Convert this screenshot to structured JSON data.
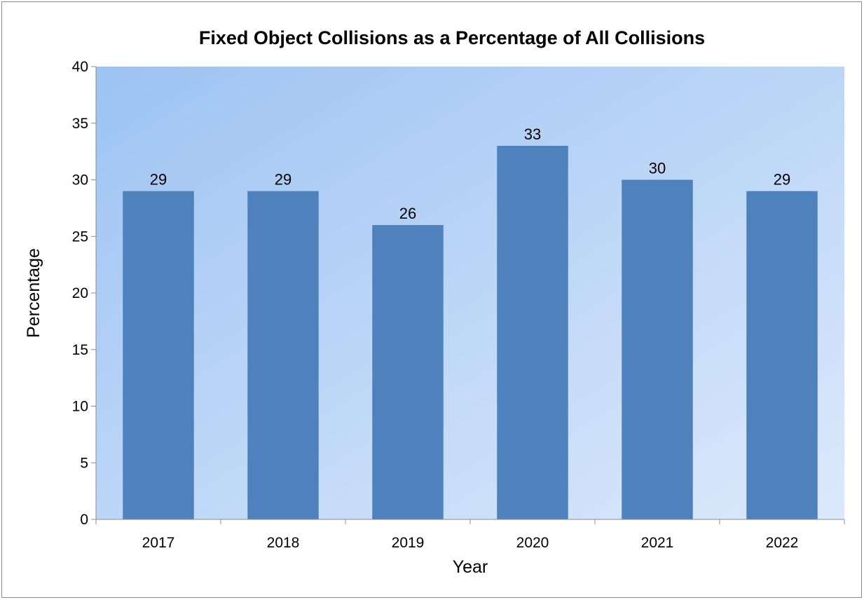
{
  "chart_data": {
    "type": "bar",
    "title": "Fixed Object Collisions as a Percentage of All Collisions",
    "xlabel": "Year",
    "ylabel": "Percentage",
    "categories": [
      "2017",
      "2018",
      "2019",
      "2020",
      "2021",
      "2022"
    ],
    "values": [
      29,
      29,
      26,
      33,
      30,
      29
    ],
    "data_labels": [
      "29",
      "29",
      "26",
      "33",
      "30",
      "29"
    ],
    "ylim": [
      0,
      40
    ],
    "yticks": [
      "0",
      "5",
      "10",
      "15",
      "20",
      "25",
      "30",
      "35",
      "40"
    ],
    "grid": false,
    "legend": "none",
    "colors": {
      "bar": "#4f81bd",
      "plot_bg_start": "#9dc3f3",
      "plot_bg_end": "#dce9fb"
    }
  }
}
